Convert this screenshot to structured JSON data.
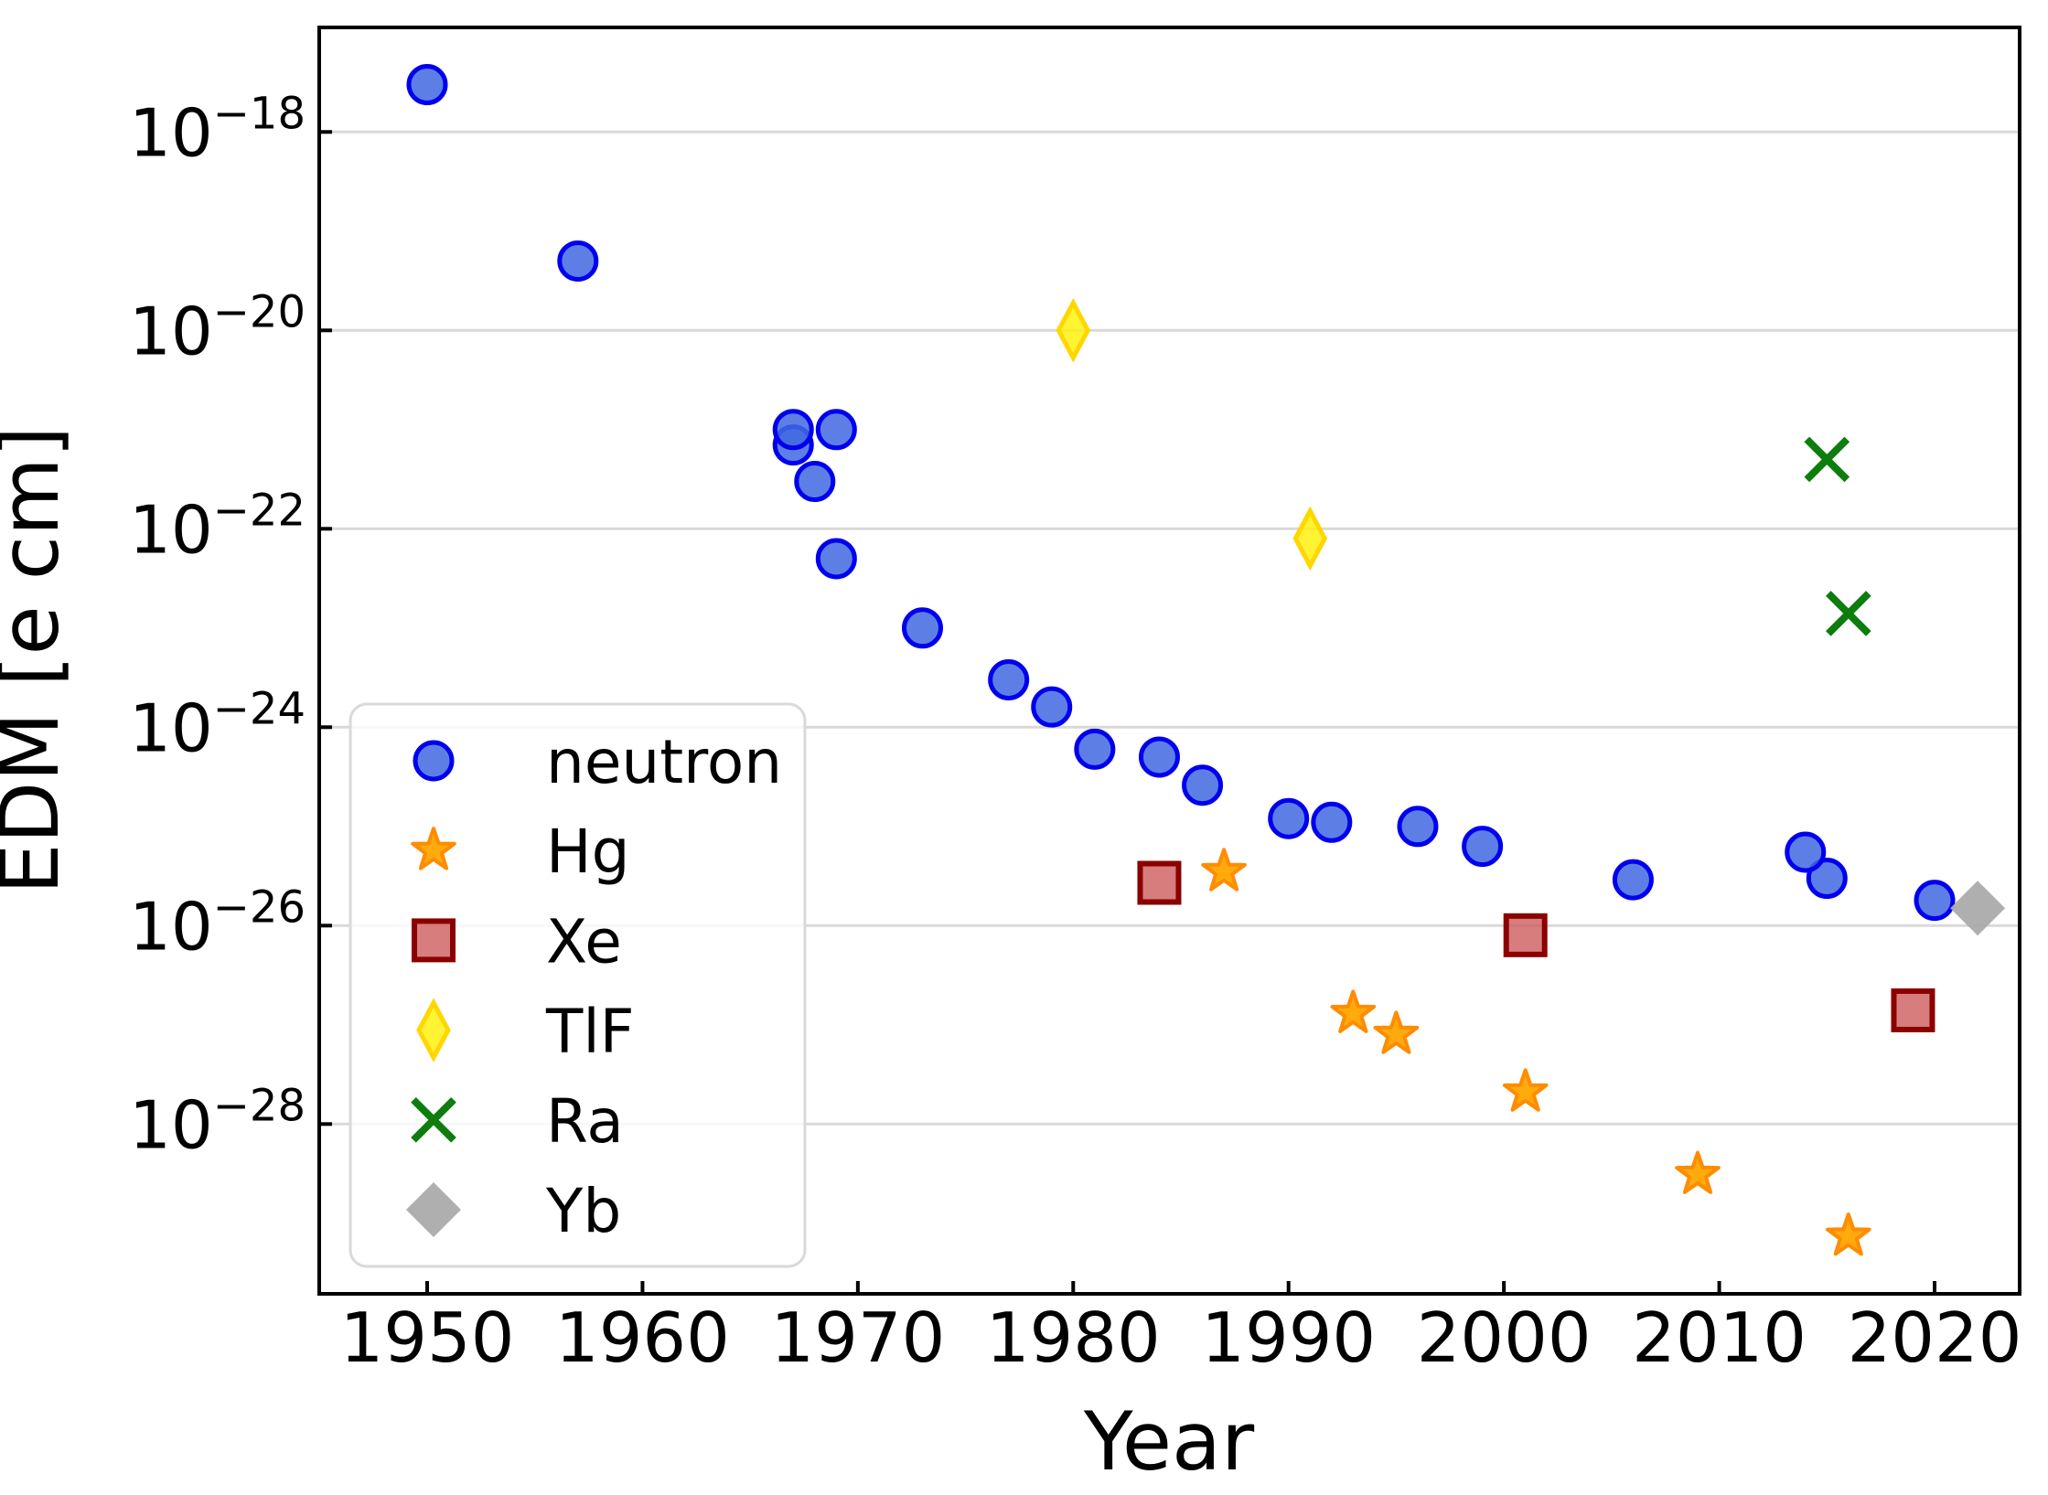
{
  "figure": {
    "background": "#ffffff",
    "title": ""
  },
  "chart_data": {
    "type": "scatter",
    "title": "",
    "xlabel": "Year",
    "ylabel": "EDM [e cm]",
    "x_ticks": [
      1950,
      1960,
      1970,
      1980,
      1990,
      2000,
      2010,
      2020
    ],
    "y_tick_exponents": [
      -18,
      -20,
      -22,
      -24,
      -26,
      -28
    ],
    "xlim": [
      1945,
      2024
    ],
    "ylim_exponents": [
      -29.7,
      -17.0
    ],
    "grid": "horizontal major gridlines, light gray",
    "legend_position": "inside lower-left",
    "axis_color": "#000000",
    "gridline_color": "#d9d9d9",
    "series": [
      {
        "name": "neutron",
        "label": "neutron",
        "marker": "circle",
        "fill": "#4169e1",
        "edge": "#0000ee",
        "points": [
          [
            1950,
            3e-18
          ],
          [
            1957,
            5e-20
          ],
          [
            1967,
            7e-22
          ],
          [
            1967,
            1e-21
          ],
          [
            1969,
            1e-21
          ],
          [
            1968,
            3e-22
          ],
          [
            1969,
            5e-23
          ],
          [
            1973,
            1e-23
          ],
          [
            1977,
            3e-24
          ],
          [
            1979,
            1.6e-24
          ],
          [
            1981,
            6e-25
          ],
          [
            1984,
            5e-25
          ],
          [
            1986,
            2.6e-25
          ],
          [
            1990,
            1.2e-25
          ],
          [
            1992,
            1.1e-25
          ],
          [
            1996,
            1e-25
          ],
          [
            1999,
            6.3e-26
          ],
          [
            2006,
            2.9e-26
          ],
          [
            2015,
            3e-26
          ],
          [
            2014,
            5.5e-26
          ],
          [
            2020,
            1.8e-26
          ]
        ]
      },
      {
        "name": "Hg",
        "label": "Hg",
        "marker": "star",
        "fill": "#ffa500",
        "edge": "#ff8c00",
        "points": [
          [
            1987,
            3.5e-26
          ],
          [
            1993,
            1.3e-27
          ],
          [
            1995,
            8e-28
          ],
          [
            2001,
            2.1e-28
          ],
          [
            2009,
            3.1e-29
          ],
          [
            2016,
            7.4e-30
          ]
        ]
      },
      {
        "name": "Xe",
        "label": "Xe",
        "marker": "square",
        "fill": "#cd5c5c",
        "edge": "#8b0000",
        "points": [
          [
            1984,
            2.7e-26
          ],
          [
            2001,
            8e-27
          ],
          [
            2019,
            1.4e-27
          ]
        ]
      },
      {
        "name": "TlF",
        "label": "TlF",
        "marker": "thin-diamond",
        "fill": "#fff000",
        "edge": "#ffd700",
        "points": [
          [
            1980,
            1e-20
          ],
          [
            1991,
            8e-23
          ]
        ]
      },
      {
        "name": "Ra",
        "label": "Ra",
        "marker": "x-cross",
        "fill": "none",
        "edge": "#0d7d0d",
        "points": [
          [
            2015,
            5e-22
          ],
          [
            2016,
            1.4e-23
          ]
        ]
      },
      {
        "name": "Yb",
        "label": "Yb",
        "marker": "diamond",
        "fill": "#ababab",
        "edge": "#ababab",
        "points": [
          [
            2022,
            1.5e-26
          ]
        ]
      }
    ]
  }
}
